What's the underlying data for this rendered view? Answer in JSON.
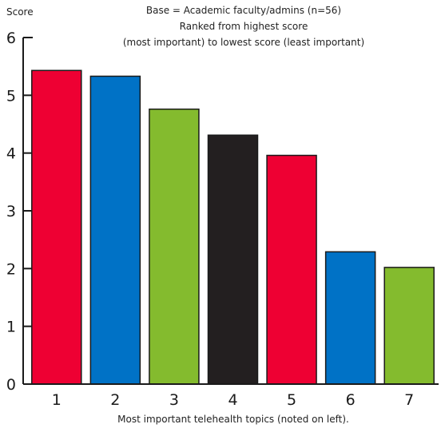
{
  "chart_data": {
    "type": "bar",
    "ylabel": "Score",
    "subtitle_lines": [
      "Base = Academic faculty/admins (n=56)",
      "Ranked from highest score",
      "(most important) to lowest score (least important)"
    ],
    "xlabel": "Most important telehealth topics (noted on left).",
    "categories": [
      "1",
      "2",
      "3",
      "4",
      "5",
      "6",
      "7"
    ],
    "values": [
      5.43,
      5.33,
      4.76,
      4.31,
      3.96,
      2.29,
      2.02
    ],
    "colors": [
      "#ee0033",
      "#0072c6",
      "#84bb2e",
      "#231f20",
      "#ee0033",
      "#0072c6",
      "#84bb2e"
    ],
    "ylim": [
      0,
      6
    ],
    "yticks": [
      "0",
      "1",
      "2",
      "3",
      "4",
      "5",
      "6"
    ],
    "grid": false,
    "legend": "none"
  }
}
